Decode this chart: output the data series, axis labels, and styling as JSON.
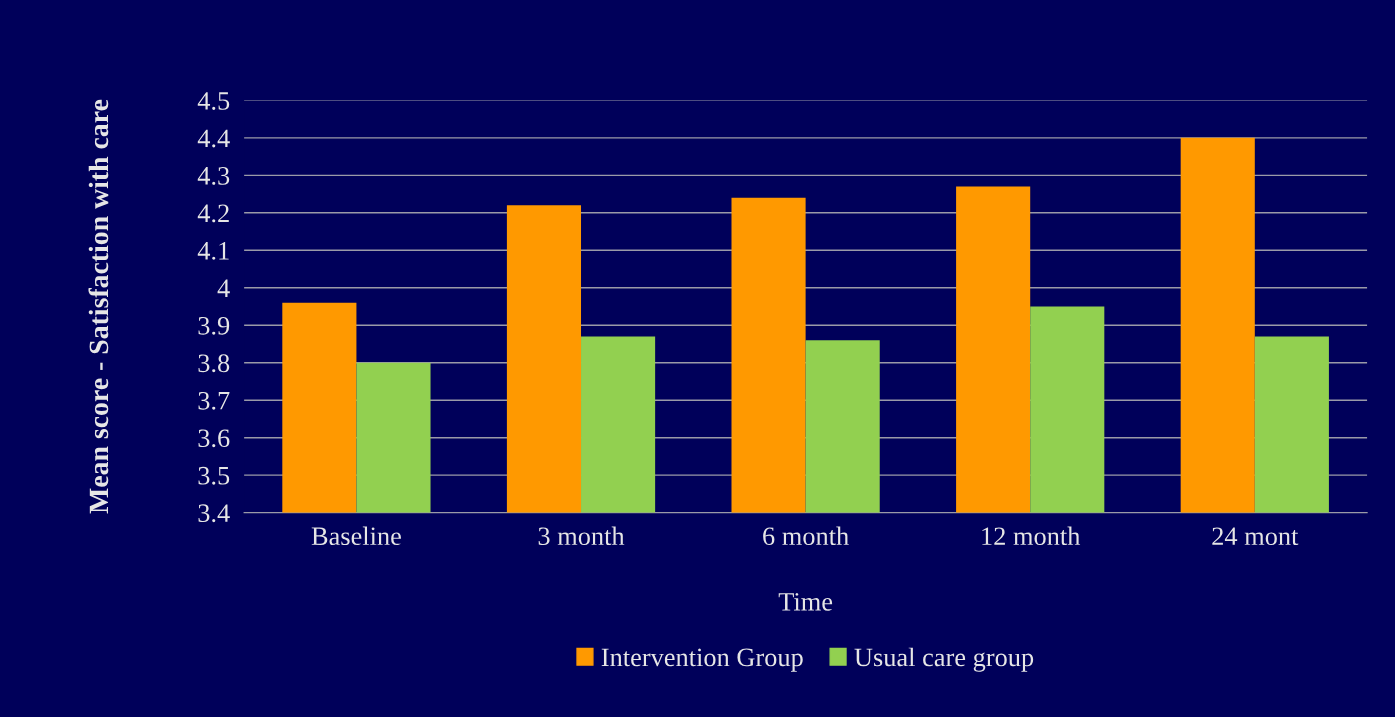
{
  "chart_data": {
    "type": "bar",
    "xlabel": "Time",
    "ylabel": "Mean score - Satisfaction with care",
    "categories": [
      "Baseline",
      "3 month",
      "6 month",
      "12 month",
      "24 mont"
    ],
    "series": [
      {
        "name": "Intervention Group",
        "color": "#ff9900",
        "values": [
          3.96,
          4.22,
          4.24,
          4.27,
          4.4
        ]
      },
      {
        "name": "Usual care group",
        "color": "#92d050",
        "values": [
          3.8,
          3.87,
          3.86,
          3.95,
          3.87
        ]
      }
    ],
    "ylim": [
      3.4,
      4.5
    ],
    "yticks": [
      {
        "value": 3.4,
        "label": "3.4"
      },
      {
        "value": 3.5,
        "label": "3.5"
      },
      {
        "value": 3.6,
        "label": "3.6"
      },
      {
        "value": 3.7,
        "label": "3.7"
      },
      {
        "value": 3.8,
        "label": "3.8"
      },
      {
        "value": 3.9,
        "label": "3.9"
      },
      {
        "value": 4.0,
        "label": "4"
      },
      {
        "value": 4.1,
        "label": "4.1"
      },
      {
        "value": 4.2,
        "label": "4.2"
      },
      {
        "value": 4.3,
        "label": "4.3"
      },
      {
        "value": 4.4,
        "label": "4.4"
      },
      {
        "value": 4.5,
        "label": "4.5"
      }
    ],
    "grid": "y",
    "legend": "bottom"
  }
}
